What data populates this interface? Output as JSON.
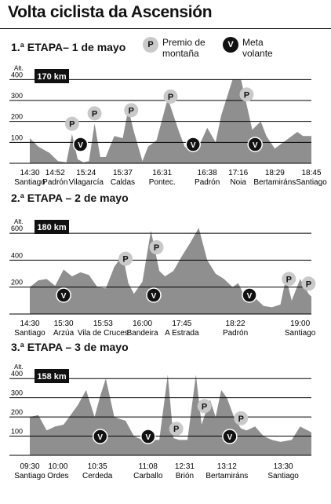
{
  "title": "Volta ciclista da Ascensión",
  "legend": {
    "mountain": {
      "symbol": "P",
      "label_line1": "Premio de",
      "label_line2": "montaña"
    },
    "goal": {
      "symbol": "V",
      "label_line1": "Meta",
      "label_line2": "volante"
    }
  },
  "colors": {
    "area": "#8f8f8f",
    "grid": "#000000",
    "mountain_icon": "#c9c9c9",
    "goal_icon": "#111111",
    "distance_box": "#111111"
  },
  "chart_data": [
    {
      "type": "area",
      "title": "1.ª ETAPA– 1 de mayo",
      "ylabel": "Alt.",
      "ylim": [
        0,
        450
      ],
      "yticks": [
        100,
        200,
        300,
        400
      ],
      "distance": "170 km",
      "xlim": [
        0,
        100
      ],
      "profile_x": [
        0,
        3,
        7,
        10,
        13,
        15,
        17,
        19,
        21,
        23,
        25,
        27,
        30,
        33,
        35,
        37,
        40,
        42,
        45,
        49,
        53,
        55,
        57,
        60,
        63,
        66,
        68,
        72,
        75,
        79,
        82,
        84,
        87,
        89,
        92,
        95,
        97,
        100
      ],
      "profile_y": [
        120,
        80,
        50,
        10,
        5,
        140,
        20,
        5,
        10,
        190,
        30,
        30,
        130,
        120,
        260,
        150,
        10,
        80,
        110,
        310,
        150,
        80,
        60,
        80,
        170,
        100,
        230,
        400,
        400,
        160,
        200,
        130,
        70,
        90,
        120,
        150,
        130,
        130
      ],
      "mountain_x": [
        15,
        23,
        36,
        50,
        77
      ],
      "goal_x": [
        18,
        58,
        80
      ],
      "times": [
        "14:30",
        "14:52",
        "15:24",
        "15:37",
        "16:31",
        "16:38",
        "17:16",
        "18:29",
        "18:45"
      ],
      "places": [
        "Santiago",
        "Padrón",
        "Vilagarcía",
        "Caldas",
        "Pontec.",
        "Padrón",
        "Noia",
        "Bertamiráns",
        "Santiago"
      ],
      "label_x": [
        0,
        9,
        20,
        33,
        47,
        63,
        74,
        87,
        100
      ]
    },
    {
      "type": "area",
      "title": "2.ª ETAPA – 2 de mayo",
      "ylabel": "Alt.",
      "ylim": [
        0,
        700
      ],
      "yticks": [
        200,
        400,
        600
      ],
      "distance": "180 km",
      "xlim": [
        0,
        100
      ],
      "profile_x": [
        0,
        3,
        6,
        9,
        12,
        15,
        18,
        21,
        24,
        27,
        30,
        33,
        35,
        37,
        40,
        43,
        46,
        48,
        51,
        54,
        57,
        60,
        63,
        66,
        69,
        72,
        74,
        77,
        80,
        83,
        86,
        89,
        91,
        93,
        96,
        99,
        100
      ],
      "profile_y": [
        200,
        250,
        260,
        210,
        330,
        280,
        310,
        290,
        200,
        190,
        350,
        440,
        230,
        150,
        240,
        620,
        320,
        280,
        320,
        430,
        530,
        640,
        400,
        300,
        260,
        200,
        230,
        100,
        120,
        60,
        50,
        70,
        270,
        100,
        260,
        150,
        130
      ],
      "mountain_x": [
        34,
        45,
        92,
        99
      ],
      "goal_x": [
        12,
        44,
        78
      ],
      "times": [
        "14:30",
        "15:30",
        "15:53",
        "16:00",
        "17:45",
        "18:22",
        "19:00"
      ],
      "places": [
        "Santiago",
        "Arzúa",
        "Vila de Cruces",
        "Bandeira",
        "A Estrada",
        "Padrón",
        "Santiago"
      ],
      "label_x": [
        0,
        12,
        26,
        40,
        54,
        73,
        96
      ]
    },
    {
      "type": "area",
      "title": "3.ª ETAPA – 3 de mayo",
      "ylabel": "Alt.",
      "ylim": [
        0,
        450
      ],
      "yticks": [
        100,
        200,
        300,
        400
      ],
      "distance": "158 km",
      "xlim": [
        0,
        100
      ],
      "profile_x": [
        0,
        3,
        6,
        9,
        12,
        15,
        17,
        20,
        23,
        25,
        27,
        30,
        32,
        34,
        37,
        40,
        43,
        46,
        49,
        51,
        53,
        56,
        59,
        61,
        64,
        66,
        68,
        70,
        73,
        75,
        77,
        80,
        83,
        86,
        89,
        93,
        96,
        100
      ],
      "profile_y": [
        200,
        210,
        130,
        150,
        160,
        220,
        260,
        340,
        200,
        310,
        400,
        200,
        190,
        180,
        100,
        80,
        80,
        80,
        420,
        90,
        80,
        80,
        420,
        160,
        290,
        200,
        340,
        300,
        180,
        140,
        130,
        150,
        100,
        80,
        70,
        80,
        150,
        120
      ],
      "mountain_x": [
        52,
        62,
        75
      ],
      "goal_x": [
        25,
        42,
        71
      ],
      "times": [
        "09:30",
        "10:00",
        "10:35",
        "11:08",
        "12:31",
        "13:12",
        "13:30"
      ],
      "places": [
        "Santiago",
        "Ordes",
        "Cerdeda",
        "Carballo",
        "Brión",
        "Bertamiráns",
        "Santiago"
      ],
      "label_x": [
        0,
        10,
        24,
        42,
        55,
        70,
        90
      ]
    }
  ]
}
